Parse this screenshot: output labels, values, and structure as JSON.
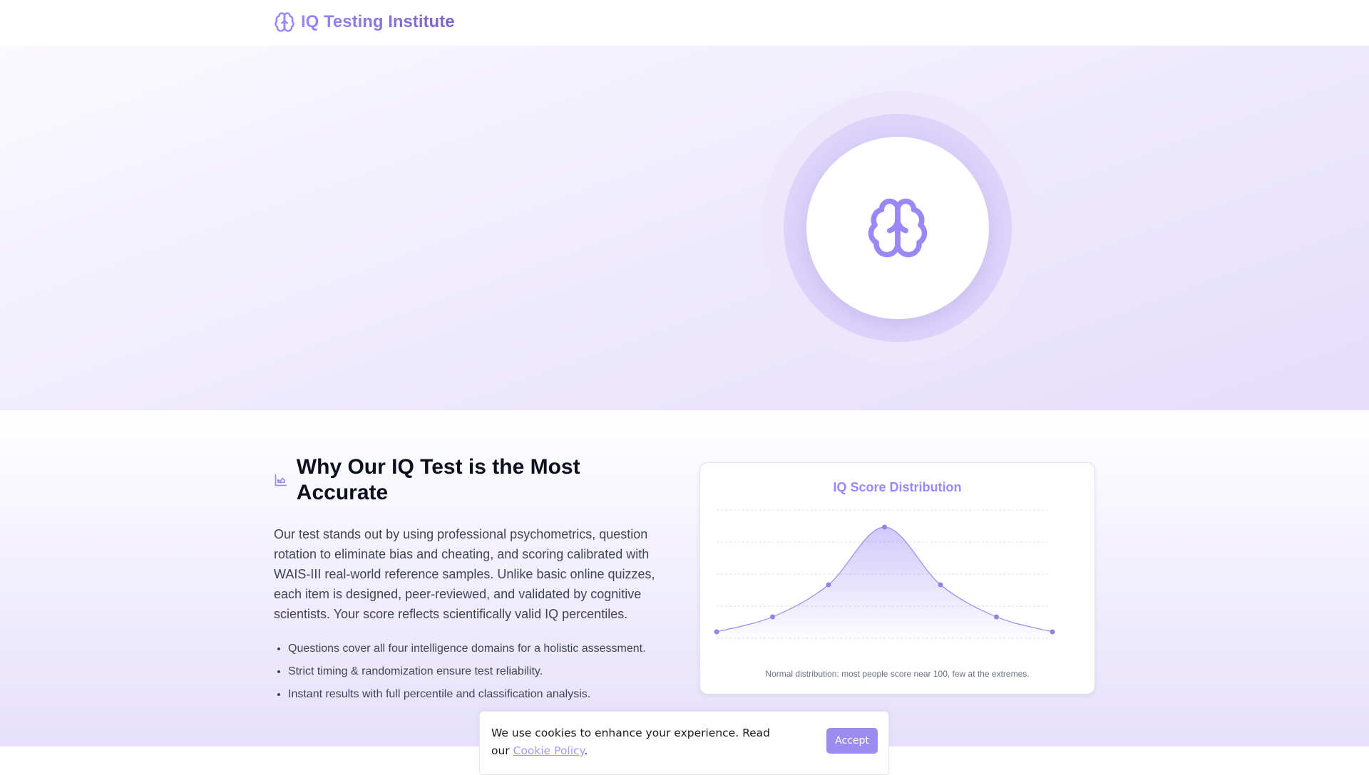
{
  "header": {
    "brand": "IQ Testing Institute",
    "brand_icon": "brain-icon"
  },
  "hero": {
    "icon": "brain-icon"
  },
  "why": {
    "icon": "chart-line-icon",
    "title": "Why Our IQ Test is the Most Accurate",
    "paragraph": "Our test stands out by using professional psychometrics, question rotation to eliminate bias and cheating, and scoring calibrated with WAIS-III real-world reference samples. Unlike basic online quizzes, each item is designed, peer-reviewed, and validated by cognitive scientists. Your score reflects scientifically valid IQ percentiles.",
    "bullets": [
      "Questions cover all four intelligence domains for a holistic assessment.",
      "Strict timing & randomization ensure test reliability.",
      "Instant results with full percentile and classification analysis."
    ]
  },
  "chart_data": {
    "type": "area",
    "title": "IQ Score Distribution",
    "caption": "Normal distribution: most people score near 100, few at the extremes.",
    "x": [
      1,
      2,
      3,
      4,
      5,
      6,
      7
    ],
    "values": [
      3,
      10,
      25,
      52,
      25,
      10,
      3
    ],
    "ylim": [
      0,
      60
    ],
    "grid": true,
    "color": "#9b87f5"
  },
  "cookie": {
    "text": "We use cookies to enhance your experience. Read our ",
    "link": "Cookie Policy",
    "after": ".",
    "accept": "Accept"
  },
  "colors": {
    "accent": "#9b87f5",
    "button": "#9d8cf0"
  }
}
